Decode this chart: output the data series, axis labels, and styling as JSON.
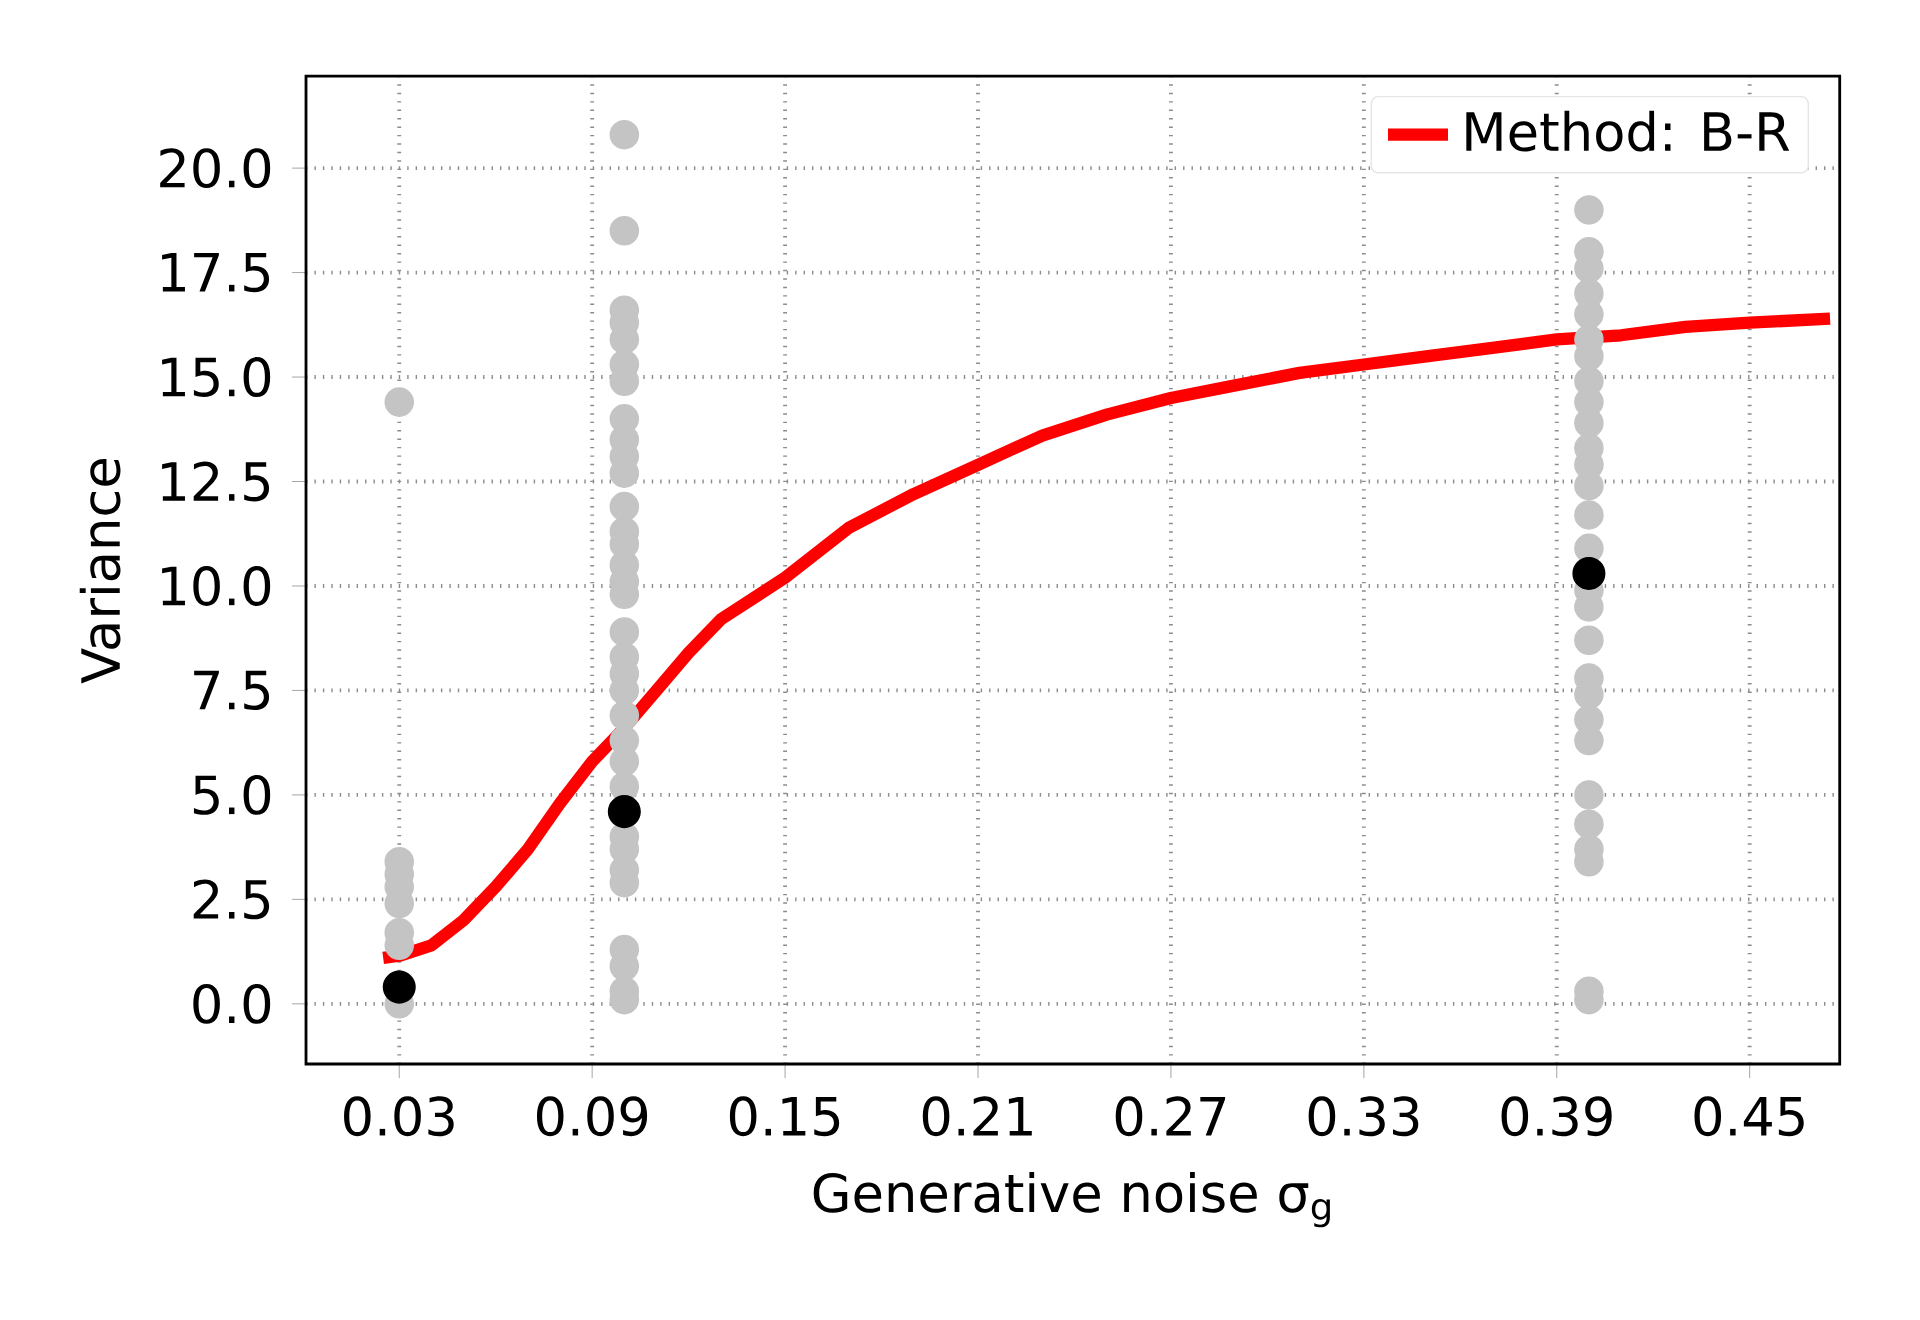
{
  "chart_data": {
    "type": "line",
    "xlabel": "Generative noise σ$_{g}$",
    "ylabel": "Variance",
    "xlim": [
      0.001,
      0.478
    ],
    "ylim": [
      -1.44,
      22.2
    ],
    "xticks": [
      0.03,
      0.09,
      0.15,
      0.21,
      0.27,
      0.33,
      0.39,
      0.45
    ],
    "yticks": [
      {
        "value": 0,
        "label": "0.0"
      },
      2.5,
      {
        "value": 5,
        "label": "5.0"
      },
      7.5,
      {
        "value": 10,
        "label": "10.0"
      },
      12.5,
      {
        "value": 15,
        "label": "15.0"
      },
      17.5,
      {
        "value": 20,
        "label": "20.0"
      }
    ],
    "grid": true,
    "legend": "top right",
    "series": [
      {
        "type": "scatter",
        "marker": "circle",
        "color": "#c4c4c4",
        "x": [
          0.03,
          0.03,
          0.03,
          0.03,
          0.03,
          0.03,
          0.03,
          0.03,
          0.1,
          0.1,
          0.1,
          0.1,
          0.1,
          0.1,
          0.1,
          0.1,
          0.1,
          0.1,
          0.1,
          0.1,
          0.1,
          0.1,
          0.1,
          0.1,
          0.1,
          0.1,
          0.1,
          0.1,
          0.1,
          0.1,
          0.1,
          0.1,
          0.1,
          0.1,
          0.1,
          0.1,
          0.1,
          0.1,
          0.1,
          0.1,
          0.1,
          0.4,
          0.4,
          0.4,
          0.4,
          0.4,
          0.4,
          0.4,
          0.4,
          0.4,
          0.4,
          0.4,
          0.4,
          0.4,
          0.4,
          0.4,
          0.4,
          0.4,
          0.4,
          0.4,
          0.4,
          0.4,
          0.4,
          0.4,
          0.4,
          0.4,
          0.4,
          0.4,
          0.4
        ],
        "values": [
          14.4,
          3.4,
          3.1,
          2.8,
          2.4,
          1.7,
          1.4,
          0.0,
          20.8,
          18.5,
          16.6,
          16.3,
          15.9,
          15.3,
          14.9,
          14.0,
          13.5,
          13.1,
          12.7,
          11.9,
          11.3,
          11.0,
          10.5,
          10.1,
          9.8,
          8.9,
          8.3,
          7.9,
          7.5,
          6.9,
          6.3,
          5.8,
          5.2,
          4.0,
          3.7,
          3.2,
          2.9,
          1.3,
          0.9,
          0.3,
          0.1,
          19.0,
          18.0,
          17.6,
          17.0,
          16.5,
          15.9,
          15.5,
          14.9,
          14.4,
          13.9,
          13.3,
          12.9,
          12.4,
          11.7,
          10.9,
          9.9,
          9.5,
          8.7,
          7.8,
          7.4,
          6.8,
          6.3,
          5.0,
          4.3,
          3.7,
          3.4,
          0.3,
          0.1
        ]
      },
      {
        "name": "Method: B-R",
        "color": "#ff0000",
        "line_style": "solid",
        "marker": "none",
        "x": [
          0.025,
          0.03,
          0.04,
          0.05,
          0.06,
          0.07,
          0.08,
          0.09,
          0.1,
          0.11,
          0.12,
          0.13,
          0.15,
          0.17,
          0.19,
          0.21,
          0.23,
          0.25,
          0.27,
          0.29,
          0.31,
          0.33,
          0.35,
          0.37,
          0.39,
          0.41,
          0.43,
          0.45,
          0.475
        ],
        "values": [
          1.1,
          1.15,
          1.4,
          2.0,
          2.8,
          3.7,
          4.8,
          5.8,
          6.6,
          7.5,
          8.4,
          9.2,
          10.2,
          11.4,
          12.2,
          12.9,
          13.6,
          14.1,
          14.5,
          14.8,
          15.1,
          15.3,
          15.5,
          15.7,
          15.9,
          16.0,
          16.2,
          16.3,
          16.4
        ]
      },
      {
        "type": "scatter",
        "marker": "circle",
        "color": "#000000",
        "x": [
          0.03,
          0.1,
          0.4
        ],
        "values": [
          0.4,
          4.6,
          10.3
        ]
      }
    ]
  }
}
